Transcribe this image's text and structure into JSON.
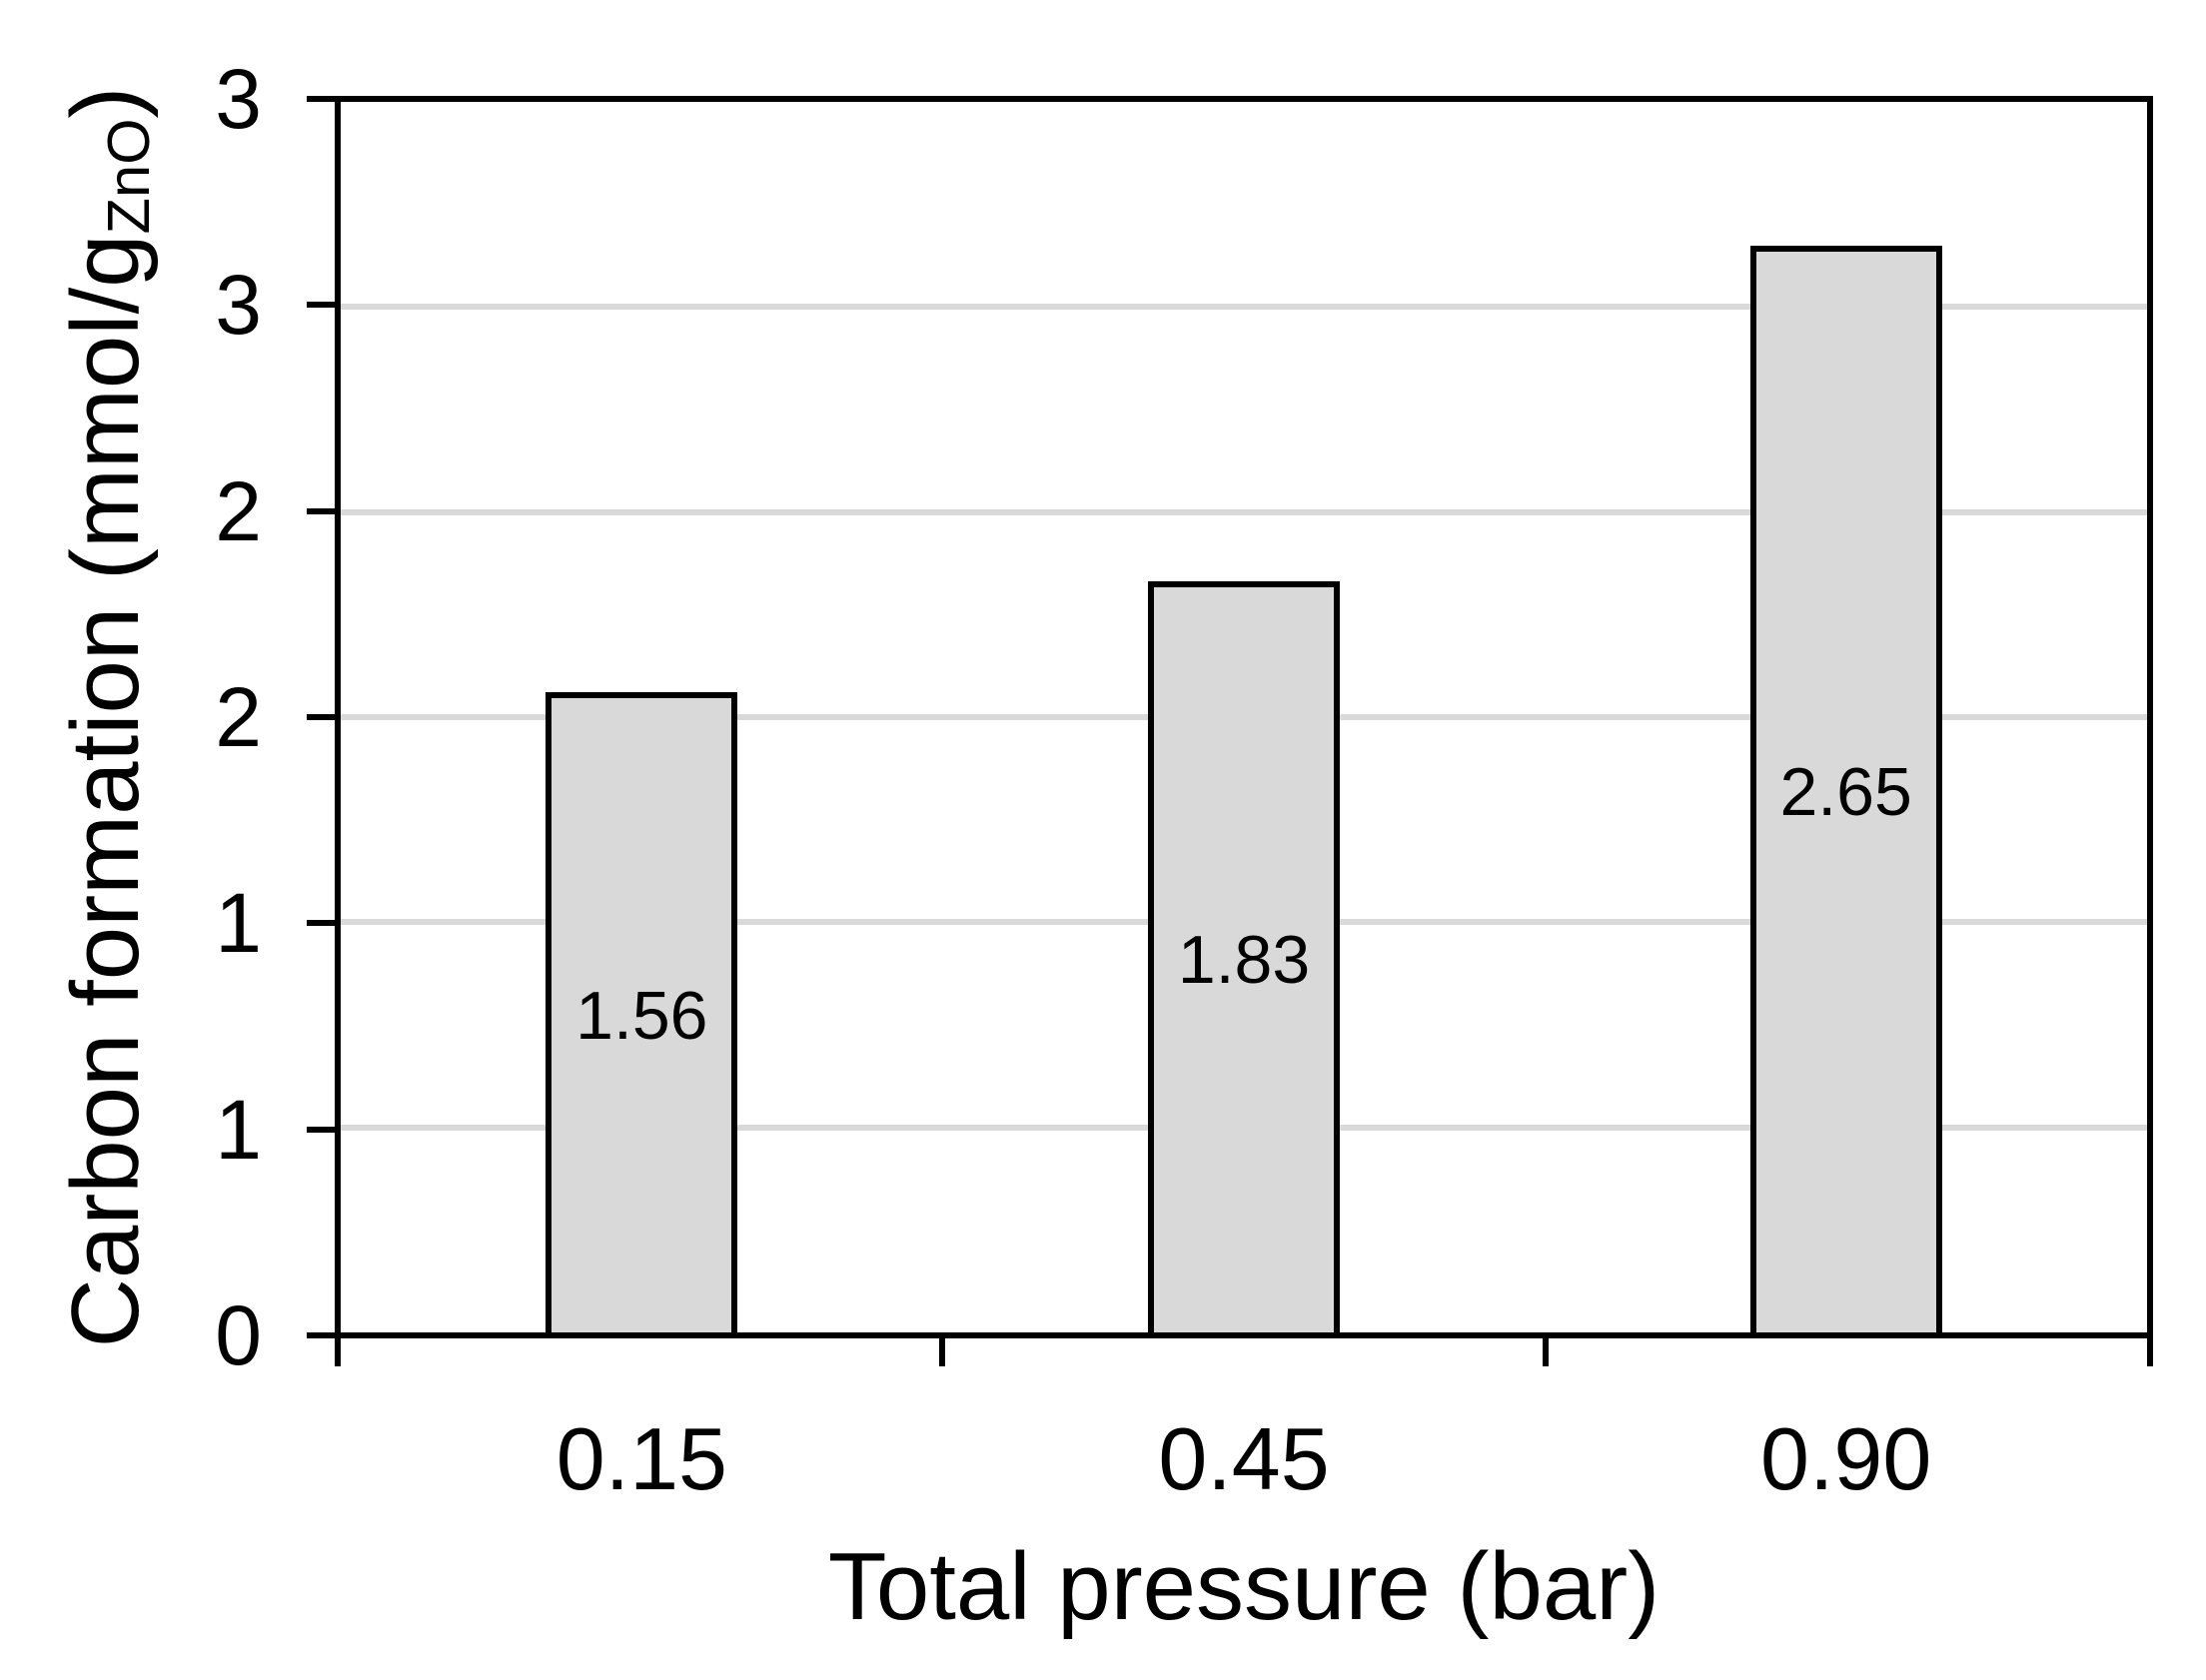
{
  "chart_data": {
    "type": "bar",
    "title": "",
    "categories": [
      "0.15",
      "0.45",
      "0.90"
    ],
    "values": [
      1.56,
      1.83,
      2.65
    ],
    "bar_value_labels": [
      "1.56",
      "1.83",
      "2.65"
    ],
    "xlabel": "Total pressure (bar)",
    "ylabel": "Carbon formation (mmol/gZnO)",
    "ylabel_parts": {
      "prefix": "Carbon formation (mmol/g",
      "subscript": "ZnO",
      "suffix": ")"
    },
    "ylim": [
      0,
      3
    ],
    "ytick_interval": 0.5,
    "yticks": [
      {
        "pos": 0,
        "label": "0"
      },
      {
        "pos": 0.5,
        "label": "1"
      },
      {
        "pos": 1,
        "label": "1"
      },
      {
        "pos": 1.5,
        "label": "2"
      },
      {
        "pos": 2,
        "label": "2"
      },
      {
        "pos": 2.5,
        "label": "3"
      },
      {
        "pos": 3,
        "label": "3"
      }
    ],
    "grid": true,
    "legend": false,
    "colors": {
      "bar_fill": "#d9d9d9",
      "bar_border": "#000000",
      "gridline": "#d9d9d9",
      "axis": "#000000",
      "text": "#000000",
      "background": "#ffffff"
    }
  }
}
